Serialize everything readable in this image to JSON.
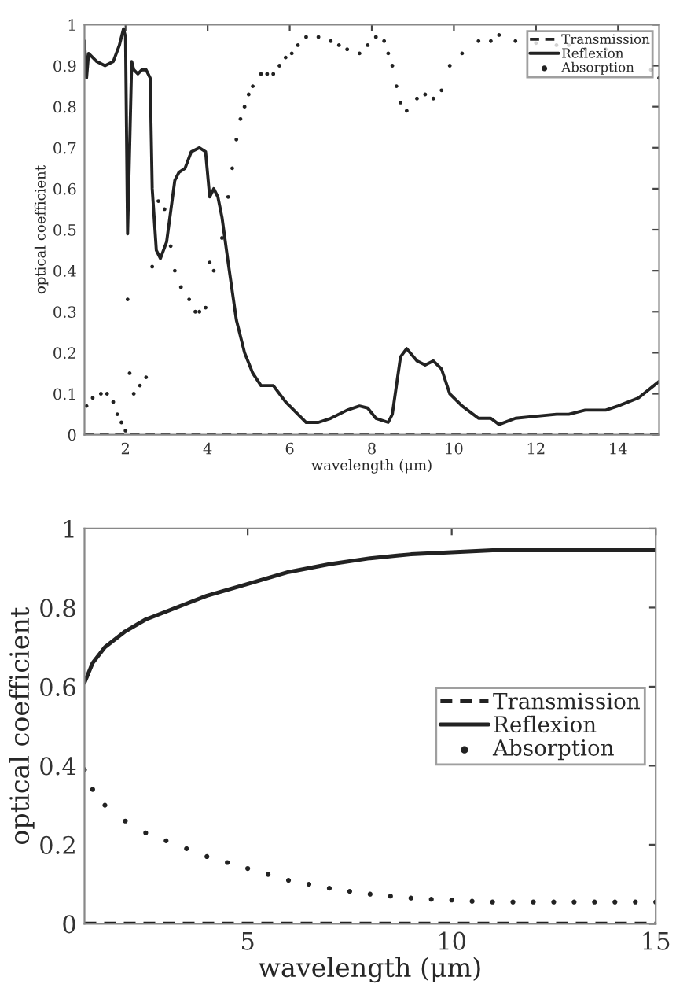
{
  "chart_data": [
    {
      "type": "line",
      "xlabel": "wavelength (μm)",
      "ylabel": "optical coefficient",
      "xlim": [
        1,
        15
      ],
      "ylim": [
        0,
        1
      ],
      "xticks": [
        2,
        4,
        6,
        8,
        10,
        12,
        14
      ],
      "yticks": [
        0,
        0.1,
        0.2,
        0.3,
        0.4,
        0.5,
        0.6,
        0.7,
        0.8,
        0.9,
        1
      ],
      "grid": false,
      "legend": "top right",
      "series": [
        {
          "name": "Transmission",
          "type": "line",
          "line_style": "dashed",
          "color": "#222222",
          "x": [
            1,
            15
          ],
          "values": [
            0,
            0
          ]
        },
        {
          "name": "Reflexion",
          "type": "line",
          "line_style": "solid",
          "color": "#222222",
          "x": [
            1,
            1.05,
            1.1,
            1.3,
            1.5,
            1.7,
            1.85,
            1.95,
            2.0,
            2.05,
            2.1,
            2.15,
            2.2,
            2.3,
            2.4,
            2.5,
            2.6,
            2.65,
            2.75,
            2.85,
            3.0,
            3.2,
            3.3,
            3.45,
            3.6,
            3.8,
            3.95,
            4.05,
            4.15,
            4.25,
            4.35,
            4.5,
            4.7,
            4.9,
            5.1,
            5.3,
            5.6,
            5.9,
            6.2,
            6.4,
            6.7,
            7.0,
            7.4,
            7.7,
            7.9,
            8.1,
            8.4,
            8.5,
            8.7,
            8.85,
            9.1,
            9.3,
            9.5,
            9.7,
            9.9,
            10.2,
            10.6,
            10.9,
            11.1,
            11.5,
            12.0,
            12.5,
            12.8,
            13.2,
            13.7,
            14.0,
            14.5,
            15.0
          ],
          "values": [
            0.96,
            0.87,
            0.93,
            0.91,
            0.9,
            0.91,
            0.95,
            0.99,
            0.97,
            0.49,
            0.7,
            0.91,
            0.89,
            0.88,
            0.89,
            0.89,
            0.87,
            0.6,
            0.45,
            0.43,
            0.47,
            0.62,
            0.64,
            0.65,
            0.69,
            0.7,
            0.69,
            0.58,
            0.6,
            0.58,
            0.53,
            0.42,
            0.28,
            0.2,
            0.15,
            0.12,
            0.12,
            0.08,
            0.05,
            0.03,
            0.03,
            0.04,
            0.06,
            0.07,
            0.065,
            0.04,
            0.03,
            0.05,
            0.19,
            0.21,
            0.18,
            0.17,
            0.18,
            0.16,
            0.1,
            0.07,
            0.04,
            0.04,
            0.025,
            0.04,
            0.045,
            0.05,
            0.05,
            0.06,
            0.06,
            0.07,
            0.09,
            0.13
          ]
        },
        {
          "name": "Absorption",
          "type": "scatter",
          "marker": "circle",
          "color": "#222222",
          "x": [
            1.05,
            1.2,
            1.4,
            1.55,
            1.7,
            1.8,
            1.9,
            2.0,
            2.05,
            2.1,
            2.2,
            2.35,
            2.5,
            2.65,
            2.8,
            2.95,
            3.1,
            3.2,
            3.35,
            3.55,
            3.7,
            3.8,
            3.95,
            4.05,
            4.15,
            4.35,
            4.5,
            4.6,
            4.7,
            4.8,
            4.9,
            5.0,
            5.1,
            5.3,
            5.45,
            5.6,
            5.75,
            5.9,
            6.05,
            6.2,
            6.4,
            6.7,
            7.0,
            7.2,
            7.4,
            7.7,
            7.9,
            8.1,
            8.3,
            8.4,
            8.5,
            8.6,
            8.7,
            8.85,
            9.1,
            9.3,
            9.5,
            9.7,
            9.9,
            10.2,
            10.6,
            10.9,
            11.1,
            11.5,
            12.0,
            12.5,
            12.8,
            13.2,
            13.7,
            14.0,
            14.5,
            14.8,
            15.0
          ],
          "values": [
            0.07,
            0.09,
            0.1,
            0.1,
            0.08,
            0.05,
            0.03,
            0.01,
            0.33,
            0.15,
            0.1,
            0.12,
            0.14,
            0.41,
            0.57,
            0.55,
            0.46,
            0.4,
            0.36,
            0.33,
            0.3,
            0.3,
            0.31,
            0.42,
            0.4,
            0.48,
            0.58,
            0.65,
            0.72,
            0.77,
            0.8,
            0.83,
            0.85,
            0.88,
            0.88,
            0.88,
            0.9,
            0.92,
            0.93,
            0.95,
            0.97,
            0.97,
            0.96,
            0.95,
            0.94,
            0.93,
            0.95,
            0.97,
            0.96,
            0.93,
            0.9,
            0.85,
            0.81,
            0.79,
            0.82,
            0.83,
            0.82,
            0.84,
            0.9,
            0.93,
            0.96,
            0.96,
            0.975,
            0.96,
            0.955,
            0.95,
            0.95,
            0.94,
            0.94,
            0.93,
            null,
            0.89,
            0.87
          ]
        }
      ]
    },
    {
      "type": "line",
      "xlabel": "wavelength (μm)",
      "ylabel": "optical coefficient",
      "xlim": [
        1,
        15
      ],
      "ylim": [
        0,
        1
      ],
      "xticks": [
        5,
        10,
        15
      ],
      "yticks": [
        0,
        0.2,
        0.4,
        0.6,
        0.8,
        1
      ],
      "grid": false,
      "legend": "right",
      "series": [
        {
          "name": "Transmission",
          "type": "line",
          "line_style": "dashed",
          "color": "#222222",
          "x": [
            1,
            15
          ],
          "values": [
            0,
            0
          ]
        },
        {
          "name": "Reflexion",
          "type": "line",
          "line_style": "solid",
          "color": "#222222",
          "x": [
            1,
            1.2,
            1.5,
            2,
            2.5,
            3,
            4,
            5,
            6,
            7,
            8,
            9,
            10,
            11,
            12,
            13,
            14,
            15
          ],
          "values": [
            0.61,
            0.66,
            0.7,
            0.74,
            0.77,
            0.79,
            0.83,
            0.86,
            0.89,
            0.91,
            0.925,
            0.935,
            0.94,
            0.945,
            0.945,
            0.945,
            0.945,
            0.945
          ]
        },
        {
          "name": "Absorption",
          "type": "scatter",
          "marker": "circle",
          "color": "#222222",
          "x": [
            1,
            1.2,
            1.5,
            2,
            2.5,
            3,
            3.5,
            4,
            4.5,
            5,
            5.5,
            6,
            6.5,
            7,
            7.5,
            8,
            8.5,
            9,
            9.5,
            10,
            10.5,
            11,
            11.5,
            12,
            12.5,
            13,
            13.5,
            14,
            14.5,
            15
          ],
          "values": [
            0.39,
            0.34,
            0.3,
            0.26,
            0.23,
            0.21,
            0.19,
            0.17,
            0.155,
            0.14,
            0.125,
            0.11,
            0.1,
            0.09,
            0.082,
            0.075,
            0.07,
            0.065,
            0.062,
            0.06,
            0.057,
            0.055,
            0.055,
            0.055,
            0.055,
            0.055,
            0.055,
            0.055,
            0.055,
            0.055
          ]
        }
      ]
    }
  ]
}
